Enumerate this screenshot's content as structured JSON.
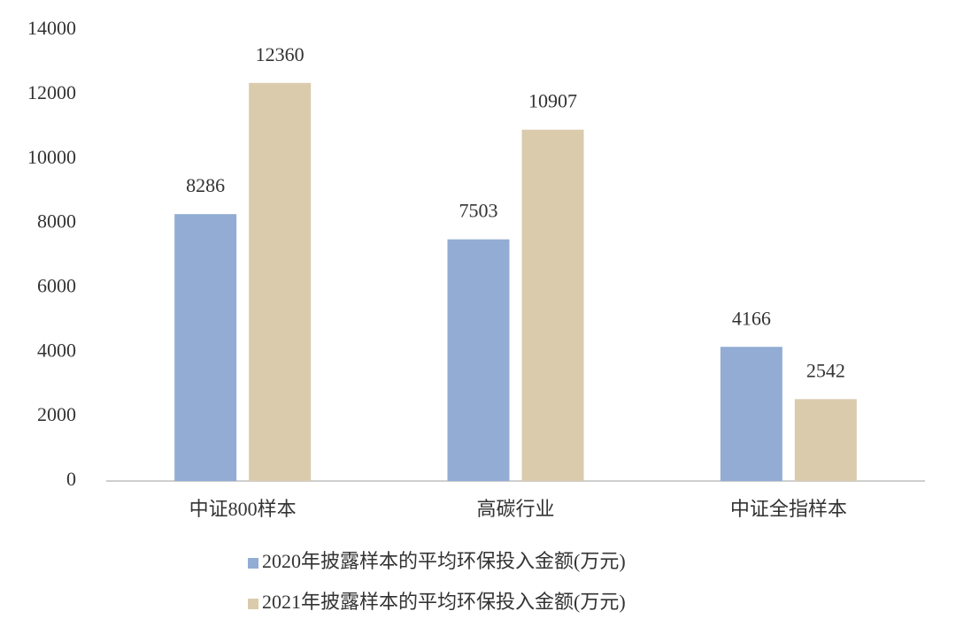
{
  "chart_data": {
    "type": "bar",
    "categories": [
      "中证800样本",
      "高碳行业",
      "中证全指样本"
    ],
    "series": [
      {
        "name": "2020年披露样本的平均环保投入金额(万元)",
        "color": "#92acd3",
        "values": [
          8286,
          7503,
          4166
        ]
      },
      {
        "name": "2021年披露样本的平均环保投入金额(万元)",
        "color": "#d9cbac",
        "values": [
          12360,
          10907,
          2542
        ]
      }
    ],
    "ylim": [
      0,
      14000
    ],
    "yticks": [
      0,
      2000,
      4000,
      6000,
      8000,
      10000,
      12000,
      14000
    ],
    "grid": false,
    "legend": "bottom"
  }
}
